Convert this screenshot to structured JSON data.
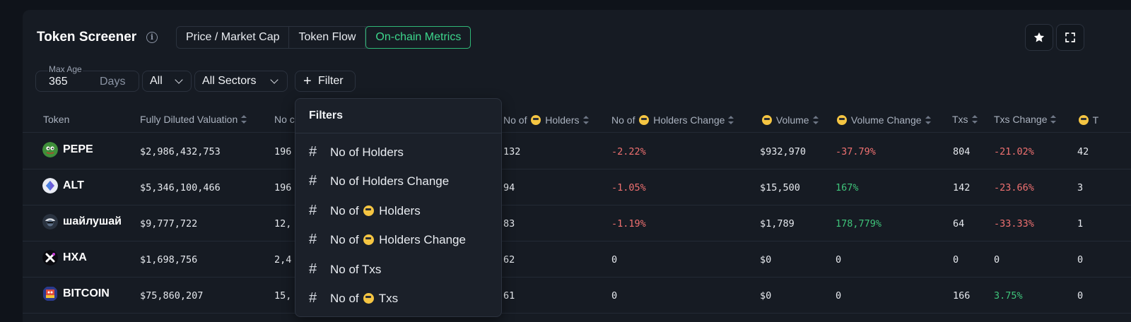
{
  "header": {
    "title": "Token Screener",
    "info_icon": "info-icon",
    "tabs": [
      {
        "label": "Price / Market Cap",
        "active": false
      },
      {
        "label": "Token Flow",
        "active": false
      },
      {
        "label": "On-chain Metrics",
        "active": true
      }
    ],
    "actions": [
      "star-icon",
      "expand-icon"
    ]
  },
  "filters": {
    "max_age": {
      "label": "Max Age",
      "value": "365",
      "unit": "Days"
    },
    "chain": "All",
    "sectors": "All Sectors",
    "filter_button": "Filter"
  },
  "table": {
    "columns": [
      "Token",
      "Fully Diluted Valuation",
      "No c",
      "No of",
      "Holders",
      "No of",
      "Holders Change",
      "Volume",
      "Volume Change",
      "Txs",
      "Txs Change",
      "T"
    ],
    "rows": [
      {
        "token": "PEPE",
        "fdv": "$2,986,432,753",
        "c1": "196",
        "smart_holders": "132",
        "smart_holders_change": "-2.22%",
        "volume": "$932,970",
        "volume_change": "-37.79%",
        "txs": "804",
        "txs_change": "-21.02%",
        "last": "42"
      },
      {
        "token": "ALT",
        "fdv": "$5,346,100,466",
        "c1": "196",
        "smart_holders": "94",
        "smart_holders_change": "-1.05%",
        "volume": "$15,500",
        "volume_change": "167%",
        "txs": "142",
        "txs_change": "-23.66%",
        "last": "3"
      },
      {
        "token": "шайлушай",
        "fdv": "$9,777,722",
        "c1": "12,",
        "smart_holders": "83",
        "smart_holders_change": "-1.19%",
        "volume": "$1,789",
        "volume_change": "178,779%",
        "txs": "64",
        "txs_change": "-33.33%",
        "last": "1"
      },
      {
        "token": "HXA",
        "fdv": "$1,698,756",
        "c1": "2,4",
        "smart_holders": "62",
        "smart_holders_change": "0",
        "volume": "$0",
        "volume_change": "0",
        "txs": "0",
        "txs_change": "0",
        "last": "0"
      },
      {
        "token": "BITCOIN",
        "fdv": "$75,860,207",
        "c1": "15,",
        "smart_holders": "61",
        "smart_holders_change": "0",
        "volume": "$0",
        "volume_change": "0",
        "txs": "166",
        "txs_change": "3.75%",
        "last": "0"
      }
    ]
  },
  "filters_menu": {
    "title": "Filters",
    "items": [
      {
        "pre": "No of Holders",
        "post": ""
      },
      {
        "pre": "No of Holders Change",
        "post": ""
      },
      {
        "pre": "No of",
        "post": "Holders"
      },
      {
        "pre": "No of",
        "post": "Holders Change"
      },
      {
        "pre": "No of Txs",
        "post": ""
      },
      {
        "pre": "No of",
        "post": "Txs"
      }
    ]
  },
  "colors": {
    "accent": "#3dd68c",
    "negative": "#f07171",
    "positive": "#3fc47a",
    "panel": "#161b23"
  }
}
